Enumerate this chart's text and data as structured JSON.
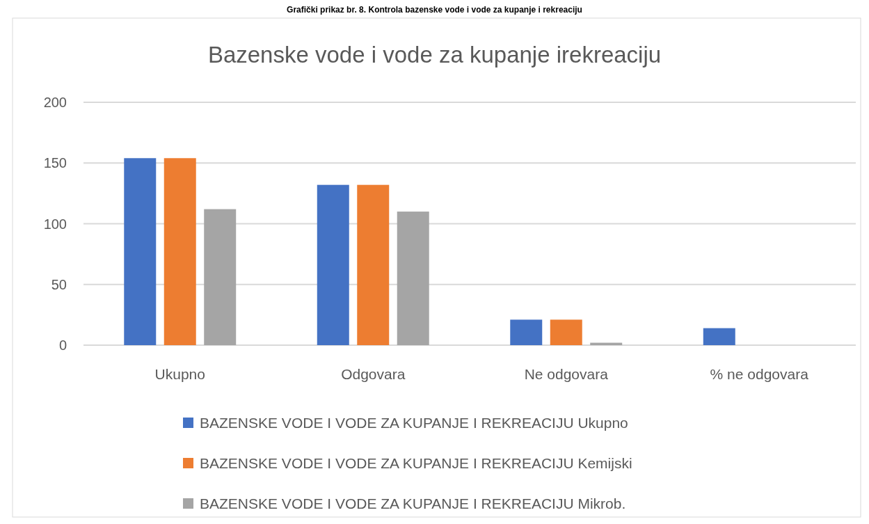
{
  "chart_data": {
    "type": "bar",
    "title": "Bazenske vode i vode za kupanje irekreaciju",
    "annotations": [
      "Grafički prikaz br. 8. Kontrola bazenske vode i vode za kupanje i rekreaciju"
    ],
    "categories": [
      "Ukupno",
      "Odgovara",
      "Ne odgovara",
      "% ne odgovara"
    ],
    "series": [
      {
        "name": "BAZENSKE VODE I VODE ZA KUPANJE I REKREACIJU Ukupno",
        "color": "#4472c4",
        "values": [
          154,
          132,
          21,
          14
        ]
      },
      {
        "name": "BAZENSKE VODE I VODE ZA KUPANJE I REKREACIJU Kemijski",
        "color": "#ed7d31",
        "values": [
          154,
          132,
          21,
          0
        ]
      },
      {
        "name": "BAZENSKE VODE I VODE ZA KUPANJE I REKREACIJU Mikrob.",
        "color": "#a5a5a5",
        "values": [
          112,
          110,
          2,
          0
        ]
      }
    ],
    "ylim": [
      0,
      200
    ],
    "yticks": [
      0,
      50,
      100,
      150,
      200
    ],
    "grid": "y",
    "legend": "bottom"
  }
}
